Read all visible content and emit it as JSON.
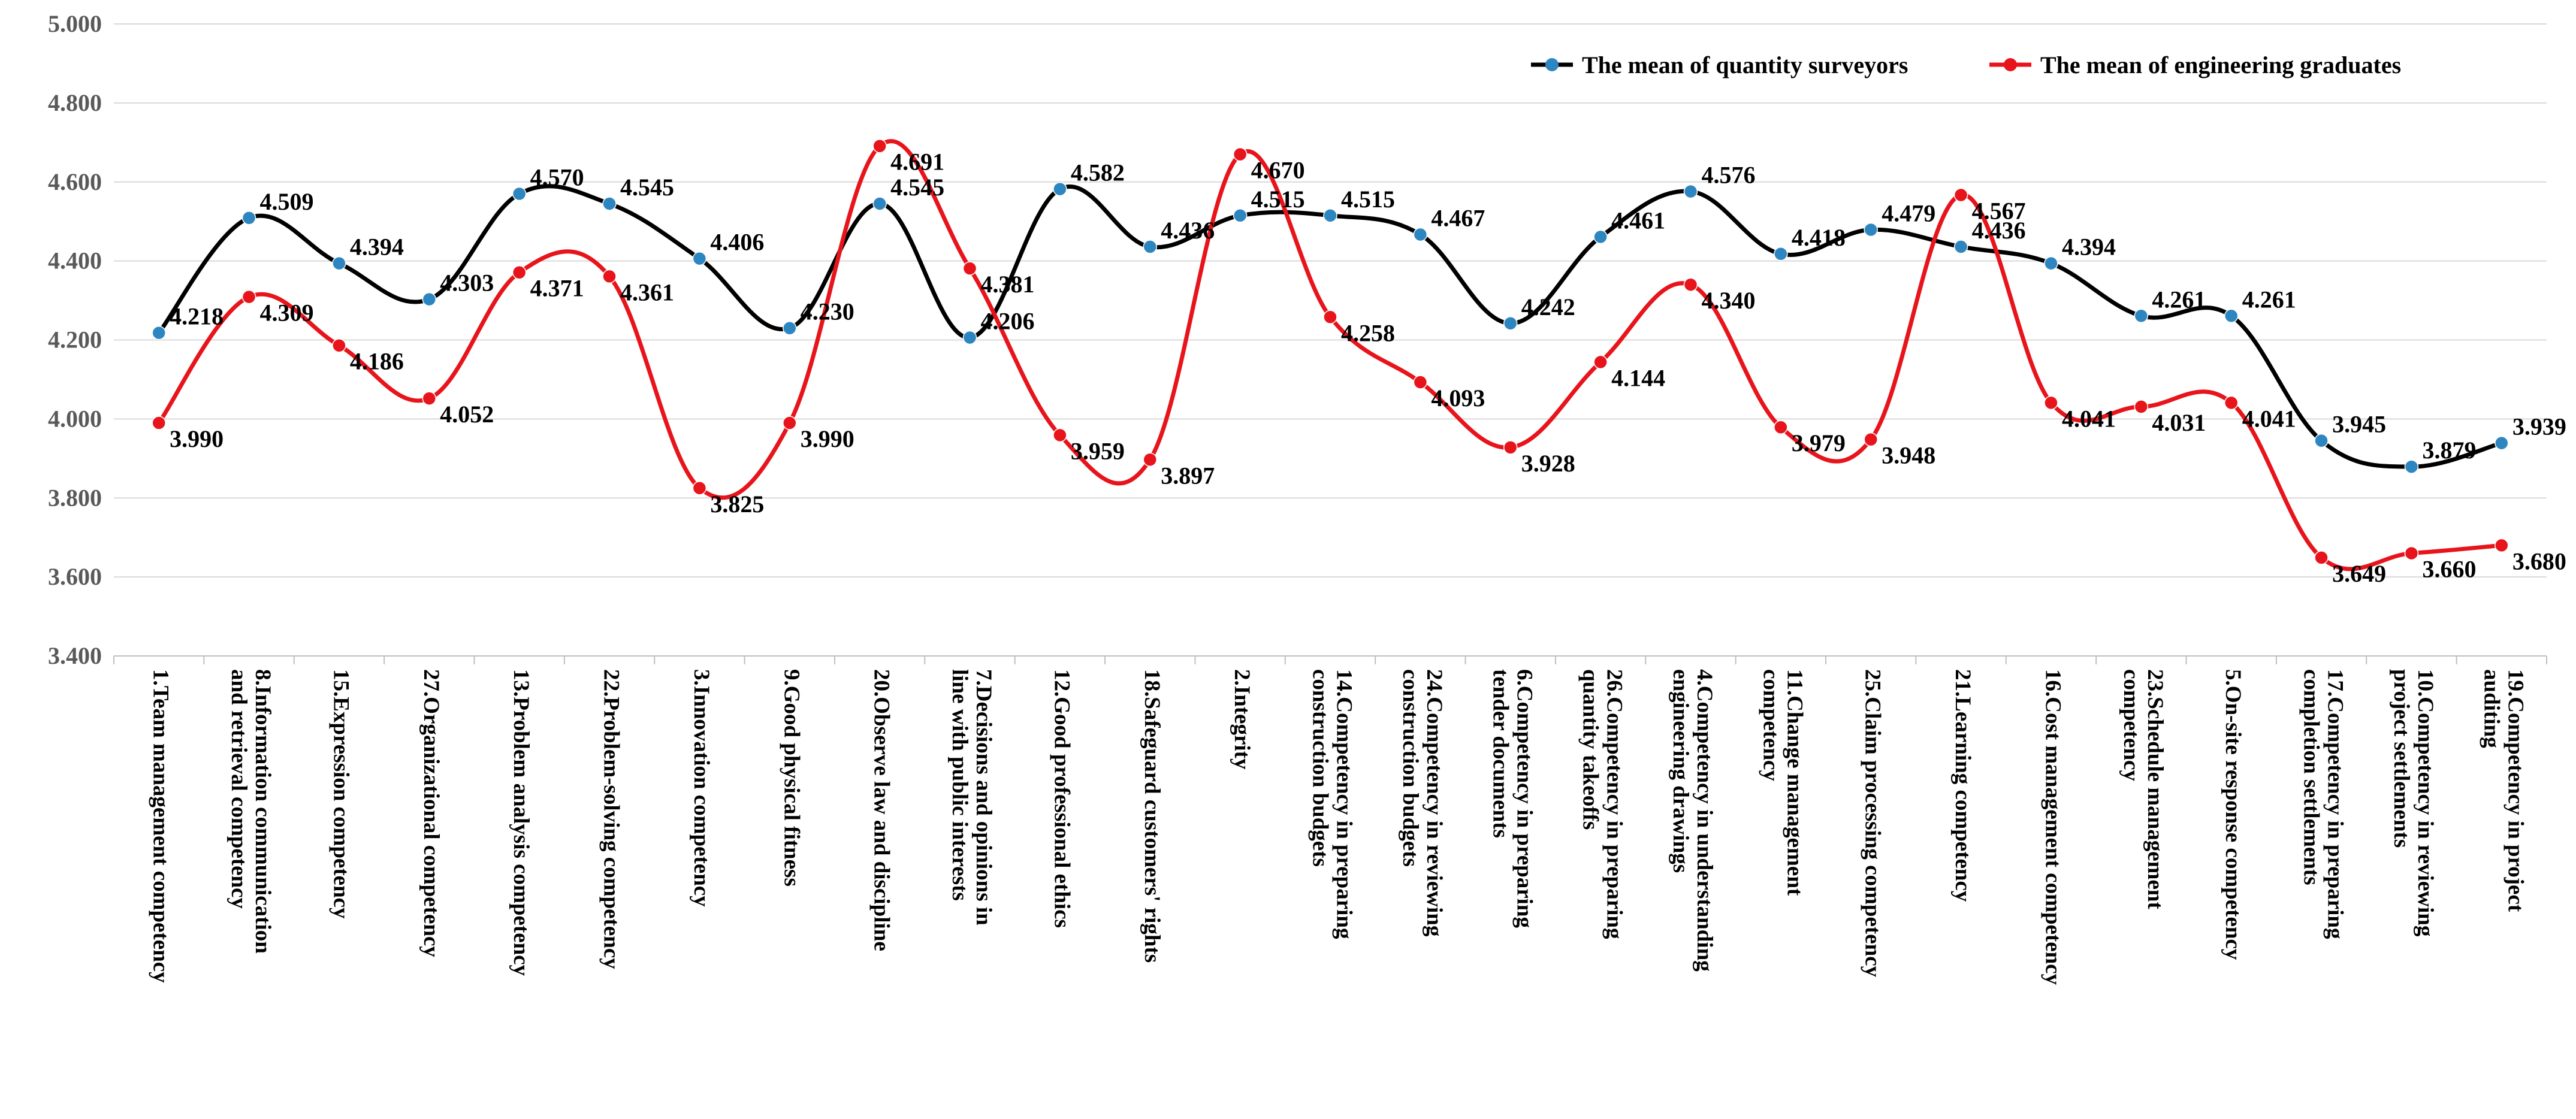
{
  "chart_data": {
    "type": "line",
    "title": "",
    "xlabel": "",
    "ylabel": "",
    "ylim": [
      3.4,
      5.0
    ],
    "y_ticks": [
      "3.400",
      "3.600",
      "3.800",
      "4.000",
      "4.200",
      "4.400",
      "4.600",
      "4.800",
      "5.000"
    ],
    "grid": "horizontal",
    "legend_position": "top-right",
    "categories": [
      "1.Team management competency",
      "8.Information communication and retrieval competency",
      "15.Expression competency",
      "27.Organizational competency",
      "13.Problem analysis competency",
      "22.Problem-solving competency",
      "3.Innovation competency",
      "9.Good physical fitness",
      "20.Observe law and discipline",
      "7.Decisions and opinions in line with public interests",
      "12.Good professional ethics",
      "18.Safeguard customers' rights",
      "2.Integrity",
      "14.Competency in preparing construction budgets",
      "24.Competency in reviewing construction budgets",
      "6.Competency in preparing tender documents",
      "26.Competency in preparing quantity takeoffs",
      "4.Competency in understanding engineering drawings",
      "11.Change management competency",
      "25.Claim processing competency",
      "21.Learning competency",
      "16.Cost management competency",
      "23.Schedule management competency",
      "5.On-site response competency",
      "17.Competency in preparing completion settlements",
      "10.Competency in reviewing project settlements",
      "19.Competency in project auditing"
    ],
    "category_lines": [
      [
        "1.Team management competency"
      ],
      [
        "8.Information communication",
        "and retrieval competency"
      ],
      [
        "15.Expression competency"
      ],
      [
        "27.Organizational competency"
      ],
      [
        "13.Problem analysis competency"
      ],
      [
        "22.Problem-solving competency"
      ],
      [
        "3.Innovation competency"
      ],
      [
        "9.Good physical fitness"
      ],
      [
        "20.Observe law and discipline"
      ],
      [
        "7.Decisions and opinions in",
        "line with public interests"
      ],
      [
        "12.Good professional ethics"
      ],
      [
        "18.Safeguard customers' rights"
      ],
      [
        "2.Integrity"
      ],
      [
        "14.Competency in preparing",
        "construction budgets"
      ],
      [
        "24.Competency in reviewing",
        "construction budgets"
      ],
      [
        "6.Competency in preparing",
        "tender documents"
      ],
      [
        "26.Competency in preparing",
        "quantity takeoffs"
      ],
      [
        "4.Competency in understanding",
        "engineering drawings"
      ],
      [
        "11.Change management",
        "competency"
      ],
      [
        "25.Claim processing competency"
      ],
      [
        "21.Learning competency"
      ],
      [
        "16.Cost management competency"
      ],
      [
        "23.Schedule management",
        "competency"
      ],
      [
        "5.On-site response competency"
      ],
      [
        "17.Competency in preparing",
        "completion settlements"
      ],
      [
        "10.Competency in reviewing",
        "project settlements"
      ],
      [
        "19.Competency in project",
        "auditing"
      ]
    ],
    "series": [
      {
        "name": "The mean of  quantity surveyors",
        "color": "#000000",
        "marker_color": "#2E86C1",
        "values": [
          4.218,
          4.509,
          4.394,
          4.303,
          4.57,
          4.545,
          4.406,
          4.23,
          4.545,
          4.206,
          4.582,
          4.436,
          4.515,
          4.515,
          4.467,
          4.242,
          4.461,
          4.576,
          4.418,
          4.479,
          4.436,
          4.394,
          4.261,
          4.261,
          3.945,
          3.879,
          3.939
        ],
        "labels": [
          "4.218",
          "4.509",
          "4.394",
          "4.303",
          "4.570",
          "4.545",
          "4.406",
          "4.230",
          "4.545",
          "4.206",
          "4.582",
          "4.436",
          "4.515",
          "4.515",
          "4.467",
          "4.242",
          "4.461",
          "4.576",
          "4.418",
          "4.479",
          "4.436",
          "4.394",
          "4.261",
          "4.261",
          "3.945",
          "3.879",
          "3.939"
        ]
      },
      {
        "name": "The mean of engineering graduates",
        "color": "#E8141B",
        "marker_color": "#E8141B",
        "values": [
          3.99,
          4.309,
          4.186,
          4.052,
          4.371,
          4.361,
          3.825,
          3.99,
          4.691,
          4.381,
          3.959,
          3.897,
          4.67,
          4.258,
          4.093,
          3.928,
          4.144,
          4.34,
          3.979,
          3.948,
          4.567,
          4.041,
          4.031,
          4.041,
          3.649,
          3.66,
          3.68
        ],
        "labels": [
          "3.990",
          "4.309",
          "4.186",
          "4.052",
          "4.371",
          "4.361",
          "3.825",
          "3.990",
          "4.691",
          "4.381",
          "3.959",
          "3.897",
          "4.670",
          "4.258",
          "4.093",
          "3.928",
          "4.144",
          "4.340",
          "3.979",
          "3.948",
          "4.567",
          "4.041",
          "4.031",
          "4.041",
          "3.649",
          "3.660",
          "3.680"
        ]
      }
    ]
  }
}
